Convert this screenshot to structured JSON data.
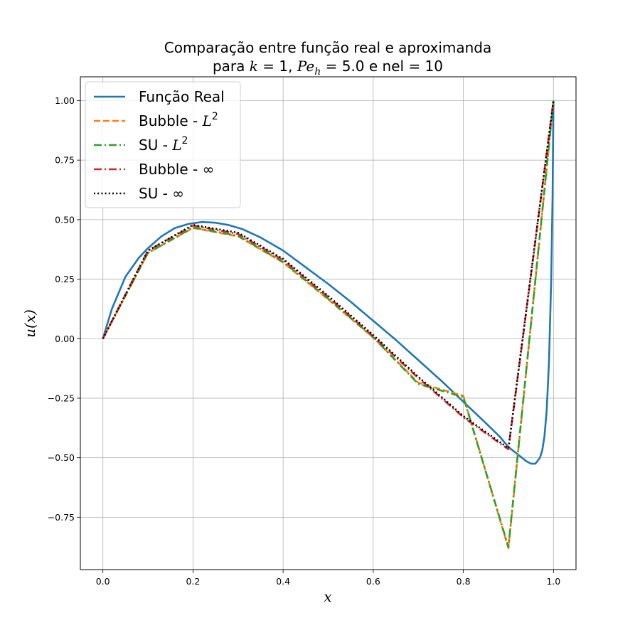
{
  "chart_data": {
    "type": "line",
    "title_line1": "Comparação entre função real e aproximanda",
    "title_line2_prefix": "para ",
    "title_k": "k",
    "title_k_eq": " = 1, ",
    "title_pe": "Pe",
    "title_pe_sub": "h",
    "title_pe_eq": " = 5.0 e nel = 10",
    "xlabel": "x",
    "ylabel": "u(x)",
    "xlim": [
      -0.05,
      1.05
    ],
    "ylim": [
      -0.97,
      1.1
    ],
    "xticks": [
      0.0,
      0.2,
      0.4,
      0.6,
      0.8,
      1.0
    ],
    "xtick_labels": [
      "0.0",
      "0.2",
      "0.4",
      "0.6",
      "0.8",
      "1.0"
    ],
    "yticks": [
      -0.75,
      -0.5,
      -0.25,
      0.0,
      0.25,
      0.5,
      0.75,
      1.0
    ],
    "ytick_labels": [
      "−0.75",
      "−0.50",
      "−0.25",
      "0.00",
      "0.25",
      "0.50",
      "0.75",
      "1.00"
    ],
    "grid": true,
    "legend_position": "upper left",
    "series": [
      {
        "name": "Função Real",
        "color": "#1f77b4",
        "style": "solid",
        "x": [
          0.0,
          0.02,
          0.05,
          0.08,
          0.1,
          0.13,
          0.16,
          0.19,
          0.22,
          0.25,
          0.28,
          0.31,
          0.35,
          0.4,
          0.45,
          0.5,
          0.55,
          0.6,
          0.65,
          0.7,
          0.75,
          0.8,
          0.85,
          0.88,
          0.9,
          0.92,
          0.94,
          0.95,
          0.96,
          0.97,
          0.975,
          0.98,
          0.985,
          0.99,
          0.995,
          0.998,
          1.0
        ],
        "y": [
          0.0,
          0.125,
          0.26,
          0.34,
          0.38,
          0.43,
          0.465,
          0.482,
          0.49,
          0.487,
          0.477,
          0.46,
          0.425,
          0.37,
          0.3,
          0.23,
          0.155,
          0.075,
          -0.005,
          -0.09,
          -0.175,
          -0.265,
          -0.355,
          -0.41,
          -0.455,
          -0.485,
          -0.515,
          -0.525,
          -0.525,
          -0.5,
          -0.47,
          -0.41,
          -0.3,
          -0.1,
          0.25,
          0.6,
          1.0
        ]
      },
      {
        "name": "Bubble - L²",
        "label_text": "Bubble - ",
        "label_math": "L",
        "label_sup": "2",
        "color": "#ff7f0e",
        "style": "dashed",
        "x": [
          0.0,
          0.1,
          0.2,
          0.3,
          0.4,
          0.5,
          0.6,
          0.7,
          0.8,
          0.9,
          1.0
        ],
        "y": [
          0.0,
          0.36,
          0.465,
          0.43,
          0.32,
          0.165,
          0.005,
          -0.185,
          -0.24,
          -0.88,
          1.0
        ]
      },
      {
        "name": "SU - L²",
        "label_text": "SU - ",
        "label_math": "L",
        "label_sup": "2",
        "color": "#2ca02c",
        "style": "dashdot",
        "x": [
          0.0,
          0.1,
          0.2,
          0.3,
          0.4,
          0.5,
          0.6,
          0.7,
          0.8,
          0.9,
          1.0
        ],
        "y": [
          0.0,
          0.36,
          0.467,
          0.432,
          0.322,
          0.168,
          0.006,
          -0.19,
          -0.245,
          -0.875,
          1.0
        ]
      },
      {
        "name": "Bubble - ∞",
        "label_text": "Bubble - ∞",
        "color": "#d62728",
        "style": "dashdot",
        "x": [
          0.0,
          0.1,
          0.2,
          0.3,
          0.4,
          0.5,
          0.6,
          0.7,
          0.8,
          0.9,
          1.0
        ],
        "y": [
          0.0,
          0.37,
          0.475,
          0.44,
          0.33,
          0.175,
          0.01,
          -0.165,
          -0.33,
          -0.465,
          1.0
        ]
      },
      {
        "name": "SU - ∞",
        "label_text": "SU - ∞",
        "color": "#000000",
        "style": "dotted",
        "x": [
          0.0,
          0.1,
          0.2,
          0.3,
          0.4,
          0.5,
          0.6,
          0.7,
          0.8,
          0.9,
          1.0
        ],
        "y": [
          0.0,
          0.37,
          0.478,
          0.445,
          0.335,
          0.18,
          0.015,
          -0.16,
          -0.325,
          -0.46,
          1.0
        ]
      }
    ]
  }
}
